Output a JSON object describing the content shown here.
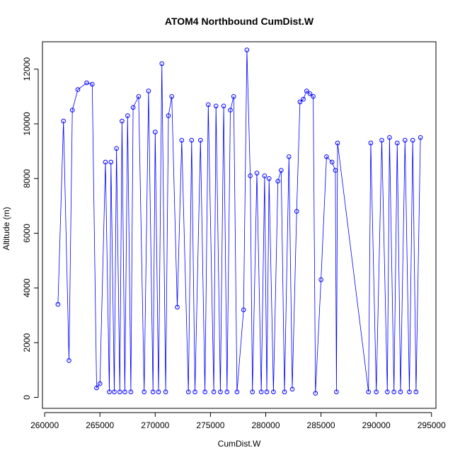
{
  "chart_data": {
    "type": "line",
    "title": "ATOM4 Northbound CumDist.W",
    "xlabel": "CumDist.W",
    "ylabel": "Altitude (m)",
    "xlim": [
      259800,
      295400
    ],
    "ylim": [
      -400,
      13000
    ],
    "xticks": [
      260000,
      265000,
      270000,
      275000,
      280000,
      285000,
      290000,
      295000
    ],
    "yticks": [
      0,
      2000,
      4000,
      6000,
      8000,
      10000,
      12000
    ],
    "grid": false,
    "legend": "none",
    "color": "#0000ff",
    "marker": "open-circle",
    "series": [
      {
        "x": [
          261200,
          261700,
          262200,
          262500,
          263000,
          263800,
          264300,
          264700,
          265000,
          265500,
          265850,
          266000,
          266300,
          266500,
          266800,
          267000,
          267250,
          267500,
          267800,
          268000,
          268500,
          269000,
          269400,
          269800,
          270000,
          270300,
          270600,
          270950,
          271200,
          271500,
          272000,
          272400,
          273000,
          273300,
          273600,
          274100,
          274500,
          274800,
          275300,
          275500,
          275900,
          276200,
          276500,
          276800,
          277100,
          277400,
          278000,
          278300,
          278600,
          278800,
          279200,
          279600,
          279900,
          280100,
          280300,
          280700,
          281100,
          281400,
          281700,
          282100,
          282400,
          282800,
          283100,
          283400,
          283700,
          284000,
          284300,
          284500,
          285000,
          285500,
          286000,
          286300,
          286400,
          286500,
          289300,
          289500,
          290000,
          290500,
          291000,
          291200,
          291600,
          291900,
          292200,
          292600,
          293000,
          293300,
          293600,
          294000
        ],
        "y": [
          3400,
          10100,
          1350,
          10500,
          11250,
          11500,
          11450,
          350,
          500,
          8600,
          200,
          8600,
          200,
          9100,
          200,
          10100,
          200,
          10300,
          200,
          10600,
          11000,
          200,
          11200,
          200,
          9700,
          200,
          12200,
          200,
          10300,
          11000,
          3300,
          9400,
          200,
          9400,
          200,
          9400,
          200,
          10700,
          200,
          10650,
          200,
          10650,
          200,
          10500,
          11000,
          200,
          3200,
          12700,
          8100,
          200,
          8200,
          200,
          8100,
          200,
          8000,
          200,
          7900,
          8300,
          200,
          8800,
          300,
          6800,
          10800,
          10900,
          11200,
          11100,
          11000,
          150,
          4300,
          8800,
          8600,
          8300,
          200,
          9300,
          200,
          9300,
          200,
          9400,
          200,
          9500,
          200,
          9300,
          200,
          9400,
          200,
          9400,
          200,
          9500
        ]
      }
    ]
  }
}
